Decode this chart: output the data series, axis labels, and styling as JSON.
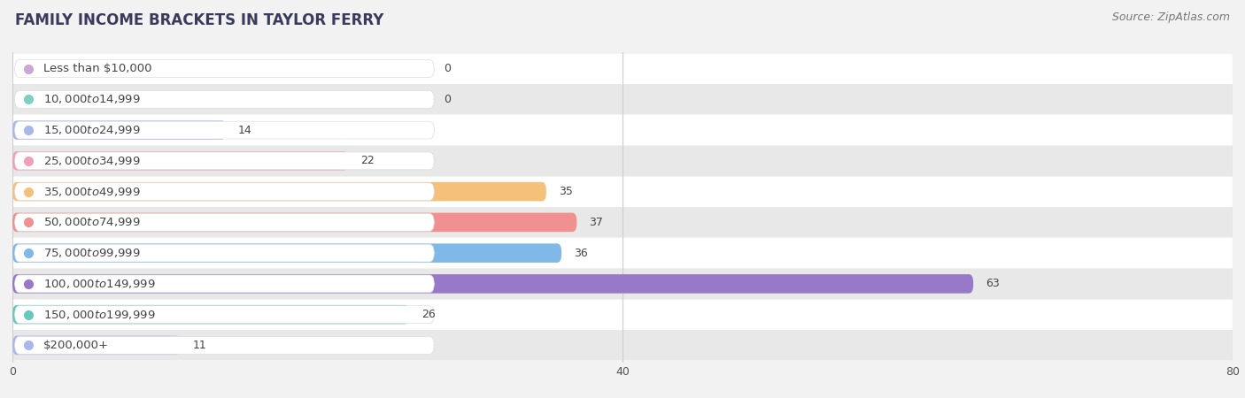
{
  "title": "FAMILY INCOME BRACKETS IN TAYLOR FERRY",
  "source": "Source: ZipAtlas.com",
  "categories": [
    "Less than $10,000",
    "$10,000 to $14,999",
    "$15,000 to $24,999",
    "$25,000 to $34,999",
    "$35,000 to $49,999",
    "$50,000 to $74,999",
    "$75,000 to $99,999",
    "$100,000 to $149,999",
    "$150,000 to $199,999",
    "$200,000+"
  ],
  "values": [
    0,
    0,
    14,
    22,
    35,
    37,
    36,
    63,
    26,
    11
  ],
  "bar_colors": [
    "#c9a8d4",
    "#7ecfc4",
    "#a8b8e8",
    "#f0a0b8",
    "#f5c07a",
    "#f09090",
    "#80b8e8",
    "#9878c8",
    "#68c8c0",
    "#a8b8e8"
  ],
  "background_color": "#f2f2f2",
  "xlim": [
    0,
    80
  ],
  "xticks": [
    0,
    40,
    80
  ],
  "title_fontsize": 12,
  "label_fontsize": 9.5,
  "value_fontsize": 9,
  "source_fontsize": 9,
  "title_color": "#3a3a5c",
  "label_color": "#444444",
  "value_color": "#444444"
}
